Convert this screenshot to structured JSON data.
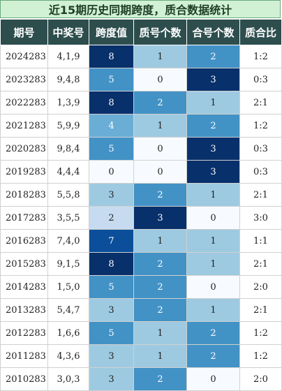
{
  "title": "近15期历史同期跨度，质合数据统计",
  "headers": [
    "期号",
    "中奖号",
    "跨度值",
    "质号个数",
    "合号个数",
    "质合比"
  ],
  "rows": [
    {
      "issue": "2024283",
      "numbers": "4,1,9",
      "span": "8",
      "prime": "1",
      "composite": "2",
      "ratio": "1:2"
    },
    {
      "issue": "2023283",
      "numbers": "9,4,8",
      "span": "5",
      "prime": "0",
      "composite": "3",
      "ratio": "0:3"
    },
    {
      "issue": "2022283",
      "numbers": "1,3,9",
      "span": "8",
      "prime": "2",
      "composite": "1",
      "ratio": "2:1"
    },
    {
      "issue": "2021283",
      "numbers": "5,9,9",
      "span": "4",
      "prime": "1",
      "composite": "2",
      "ratio": "1:2"
    },
    {
      "issue": "2020283",
      "numbers": "9,8,4",
      "span": "5",
      "prime": "0",
      "composite": "3",
      "ratio": "0:3"
    },
    {
      "issue": "2019283",
      "numbers": "4,4,4",
      "span": "0",
      "prime": "0",
      "composite": "3",
      "ratio": "0:3"
    },
    {
      "issue": "2018283",
      "numbers": "5,5,8",
      "span": "3",
      "prime": "2",
      "composite": "1",
      "ratio": "2:1"
    },
    {
      "issue": "2017283",
      "numbers": "3,5,5",
      "span": "2",
      "prime": "3",
      "composite": "0",
      "ratio": "3:0"
    },
    {
      "issue": "2016283",
      "numbers": "7,4,0",
      "span": "7",
      "prime": "1",
      "composite": "1",
      "ratio": "1:1"
    },
    {
      "issue": "2015283",
      "numbers": "9,1,5",
      "span": "8",
      "prime": "2",
      "composite": "1",
      "ratio": "2:1"
    },
    {
      "issue": "2014283",
      "numbers": "1,5,0",
      "span": "5",
      "prime": "2",
      "composite": "0",
      "ratio": "2:0"
    },
    {
      "issue": "2013283",
      "numbers": "5,4,7",
      "span": "3",
      "prime": "2",
      "composite": "1",
      "ratio": "2:1"
    },
    {
      "issue": "2012283",
      "numbers": "1,6,6",
      "span": "5",
      "prime": "1",
      "composite": "2",
      "ratio": "1:2"
    },
    {
      "issue": "2011283",
      "numbers": "4,3,6",
      "span": "3",
      "prime": "1",
      "composite": "2",
      "ratio": "1:2"
    },
    {
      "issue": "2010283",
      "numbers": "3,0,3",
      "span": "3",
      "prime": "2",
      "composite": "0",
      "ratio": "2:0"
    }
  ],
  "colors": {
    "title_bg": "#d1f1d4",
    "header_bg": "#2e4e4e",
    "span_scale": {
      "0": "#f7fbff",
      "2": "#c6dbef",
      "3": "#9ecae1",
      "4": "#6aaed6",
      "5": "#4292c6",
      "7": "#0b4f9b",
      "8": "#08306b"
    },
    "count_scale": {
      "0": "#f7fbff",
      "1": "#9ecae1",
      "2": "#4292c6",
      "3": "#08306b"
    }
  }
}
